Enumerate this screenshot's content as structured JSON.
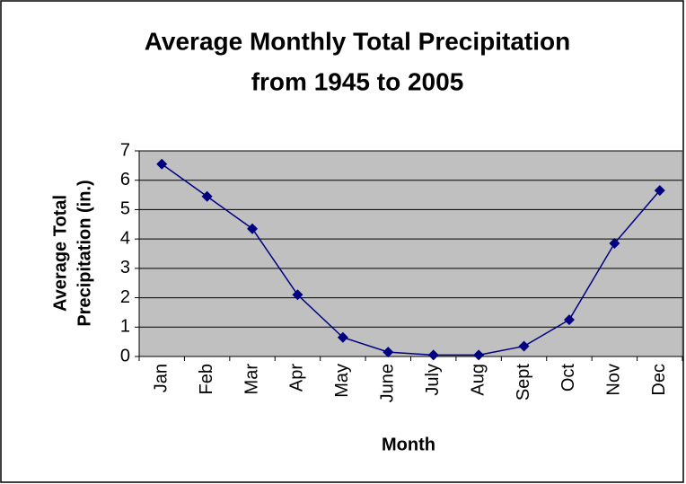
{
  "chart_data": {
    "type": "line",
    "title": [
      "Average Monthly Total Precipitation",
      "from 1945 to 2005"
    ],
    "x_label": "Month",
    "y_label": [
      "Average Total",
      "Precipitation (in.)"
    ],
    "categories": [
      "Jan",
      "Feb",
      "Mar",
      "Apr",
      "May",
      "June",
      "July",
      "Aug",
      "Sept",
      "Oct",
      "Nov",
      "Dec"
    ],
    "values": [
      6.55,
      5.45,
      4.35,
      2.1,
      0.65,
      0.15,
      0.05,
      0.05,
      0.35,
      1.25,
      3.85,
      5.65
    ],
    "color": "#000080",
    "ylim": [
      0,
      7
    ],
    "yticks": [
      0,
      1,
      2,
      3,
      4,
      5,
      6,
      7
    ],
    "grid": true,
    "plot_background": "#c0c0c0"
  }
}
